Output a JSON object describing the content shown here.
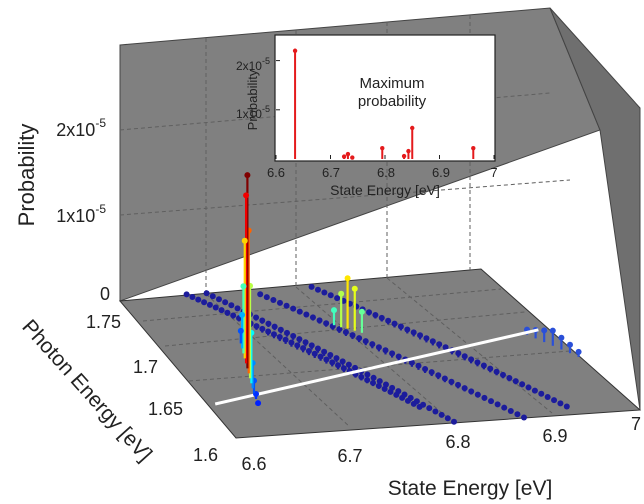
{
  "chart_data": [
    {
      "type": "stem3d",
      "title": "",
      "axes": {
        "x": {
          "label": "State Energy [eV]",
          "ticks": [
            "6.6",
            "6.7",
            "6.8",
            "6.9",
            "7"
          ],
          "range": [
            6.57,
            7.0
          ]
        },
        "y": {
          "label": "Photon Energy [eV]",
          "ticks": [
            "1.6",
            "1.65",
            "1.7",
            "1.75"
          ],
          "range": [
            1.59,
            1.77
          ]
        },
        "z": {
          "label": "Probability",
          "ticks": [
            "0",
            "1x10",
            "2x10"
          ],
          "tick_exponent": "-5",
          "range": [
            0,
            3e-05
          ]
        }
      },
      "grid": true,
      "background_color": "#808080",
      "stem_color_low": "#1c1c9c",
      "stem_color_high": "#8b0000",
      "colormap": "jet",
      "highlight_line_color": "#ffffff",
      "highlight_line": [
        [
          6.6,
          1.64
        ],
        [
          6.97,
          1.705
        ]
      ],
      "cluster": {
        "x": [
          6.64,
          6.643,
          6.646,
          6.649,
          6.652,
          6.655,
          6.658,
          6.661,
          6.664,
          6.667,
          6.67,
          6.673,
          6.676
        ],
        "y": [
          1.636,
          1.643,
          1.65,
          1.656,
          1.662,
          1.668,
          1.674,
          1.68,
          1.686,
          1.692,
          1.698,
          1.704,
          1.71
        ],
        "z": [
          2e-07,
          6e-07,
          1.5e-06,
          3e-06,
          6e-06,
          1.1e-05,
          1.7e-05,
          2.3e-05,
          2e-05,
          1.4e-05,
          8e-06,
          4e-06,
          1.5e-06
        ]
      },
      "series_lines": [
        {
          "x0": 6.665,
          "y0": 1.77,
          "x1": 6.79,
          "y1": 1.62,
          "peak_z": 0.0
        },
        {
          "x0": 6.685,
          "y0": 1.77,
          "x1": 6.81,
          "y1": 1.6,
          "peak_z": 0.0
        },
        {
          "x0": 6.735,
          "y0": 1.765,
          "x1": 6.88,
          "y1": 1.6,
          "peak_z": 0.0
        },
        {
          "x0": 6.79,
          "y0": 1.77,
          "x1": 6.93,
          "y1": 1.61,
          "peak_z": 0.0
        }
      ],
      "cyan_cluster": {
        "x": [
          6.78,
          6.785,
          6.79,
          6.795,
          6.8
        ],
        "y": [
          1.725,
          1.722,
          1.72,
          1.717,
          1.714
        ],
        "z": [
          1.8e-06,
          4e-06,
          6e-06,
          5e-06,
          2.5e-06
        ]
      },
      "right_tail": {
        "x": [
          6.955,
          6.96,
          6.965,
          6.97,
          6.975,
          6.98,
          6.985
        ],
        "y": [
          1.7,
          1.695,
          1.69,
          1.685,
          1.68,
          1.675,
          1.67
        ],
        "z": [
          6e-07,
          1e-06,
          1.4e-06,
          1.8e-06,
          1.4e-06,
          1e-06,
          6e-07
        ]
      }
    },
    {
      "type": "stem",
      "title": "Maximum probability",
      "xlabel": "State Energy [eV]",
      "ylabel": "Probability",
      "xlim": [
        6.6,
        7.0
      ],
      "ylim": [
        0,
        2.5e-05
      ],
      "xticks": [
        "6.6",
        "6.7",
        "6.8",
        "6.9",
        "7"
      ],
      "yticks": [
        "1x10",
        "2x10"
      ],
      "ytick_exponent": "-5",
      "annotation_line1": "Maximum",
      "annotation_line2": "probability",
      "color": "#e41a1c",
      "x": [
        6.635,
        6.725,
        6.732,
        6.74,
        6.795,
        6.835,
        6.843,
        6.85,
        6.962
      ],
      "y": [
        2.2e-05,
        5e-07,
        1e-06,
        3e-07,
        2.2e-06,
        6e-07,
        1.6e-06,
        6.3e-06,
        2.2e-06
      ]
    }
  ]
}
